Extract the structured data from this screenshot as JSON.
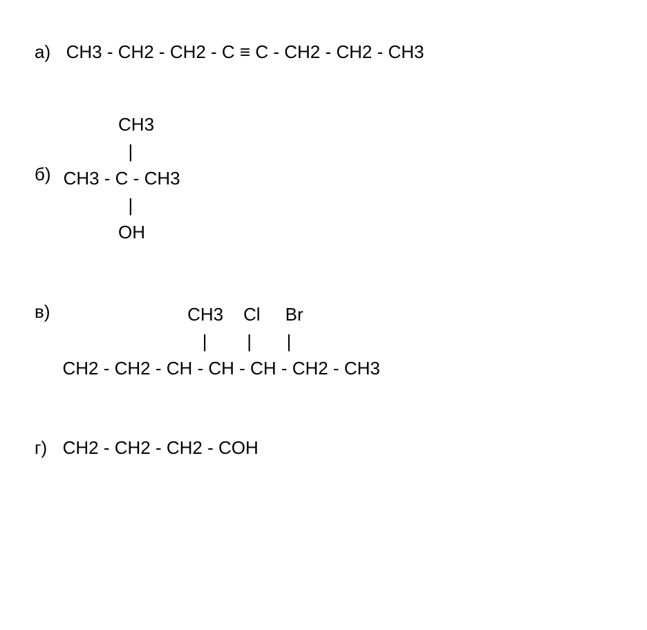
{
  "font": {
    "family": "Arial",
    "size_pt": 20,
    "color": "#000000"
  },
  "background_color": "#ffffff",
  "formulas": {
    "a": {
      "label": "а)",
      "text": "CH3 - CH2 - CH2 - C ≡ C - CH2 - CH2 - CH3"
    },
    "b": {
      "label": "б)",
      "rows": [
        "           CH3",
        "             |",
        "CH3 - C - CH3",
        "             |",
        "           OH"
      ]
    },
    "v": {
      "label": "в)",
      "rows": [
        "                         CH3    Cl     Br",
        "                            |        |       |",
        "CH2 - CH2 - CH - CH - CH - CH2 - CH3"
      ]
    },
    "g": {
      "label": "г)",
      "text": "CH2 - CH2 - CH2 - COH"
    }
  }
}
